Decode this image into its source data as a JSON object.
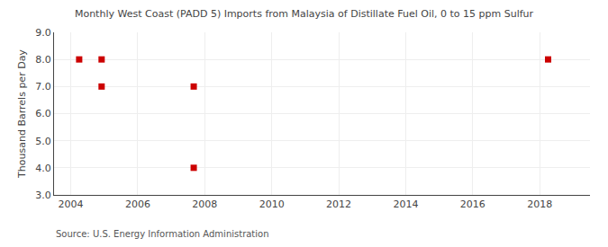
{
  "chart_data": {
    "type": "scatter",
    "title": "Monthly West Coast (PADD 5) Imports from Malaysia of Distillate Fuel Oil, 0 to 15 ppm Sulfur",
    "ylabel": "Thousand Barrels per Day",
    "annotations": [
      "Source: U.S. Energy Information Administration"
    ],
    "x": [
      2004.25,
      2004.92,
      2004.92,
      2007.67,
      2007.67,
      2018.25
    ],
    "values": [
      8.0,
      8.0,
      7.0,
      7.0,
      4.0,
      8.0
    ],
    "color": "#cc0000",
    "marker": "square",
    "xlim": [
      2003.5,
      2019.5
    ],
    "ylim": [
      3.0,
      9.0
    ],
    "xticks": [
      2004,
      2006,
      2008,
      2010,
      2012,
      2014,
      2016,
      2018
    ],
    "yticks": [
      {
        "value": 3.0,
        "label": "3.0"
      },
      {
        "value": 4.0,
        "label": "4.0"
      },
      {
        "value": 5.0,
        "label": "5.0"
      },
      {
        "value": 6.0,
        "label": "6.0"
      },
      {
        "value": 7.0,
        "label": "7.0"
      },
      {
        "value": 8.0,
        "label": "8.0"
      },
      {
        "value": 9.0,
        "label": "9.0"
      }
    ],
    "grid": true
  }
}
